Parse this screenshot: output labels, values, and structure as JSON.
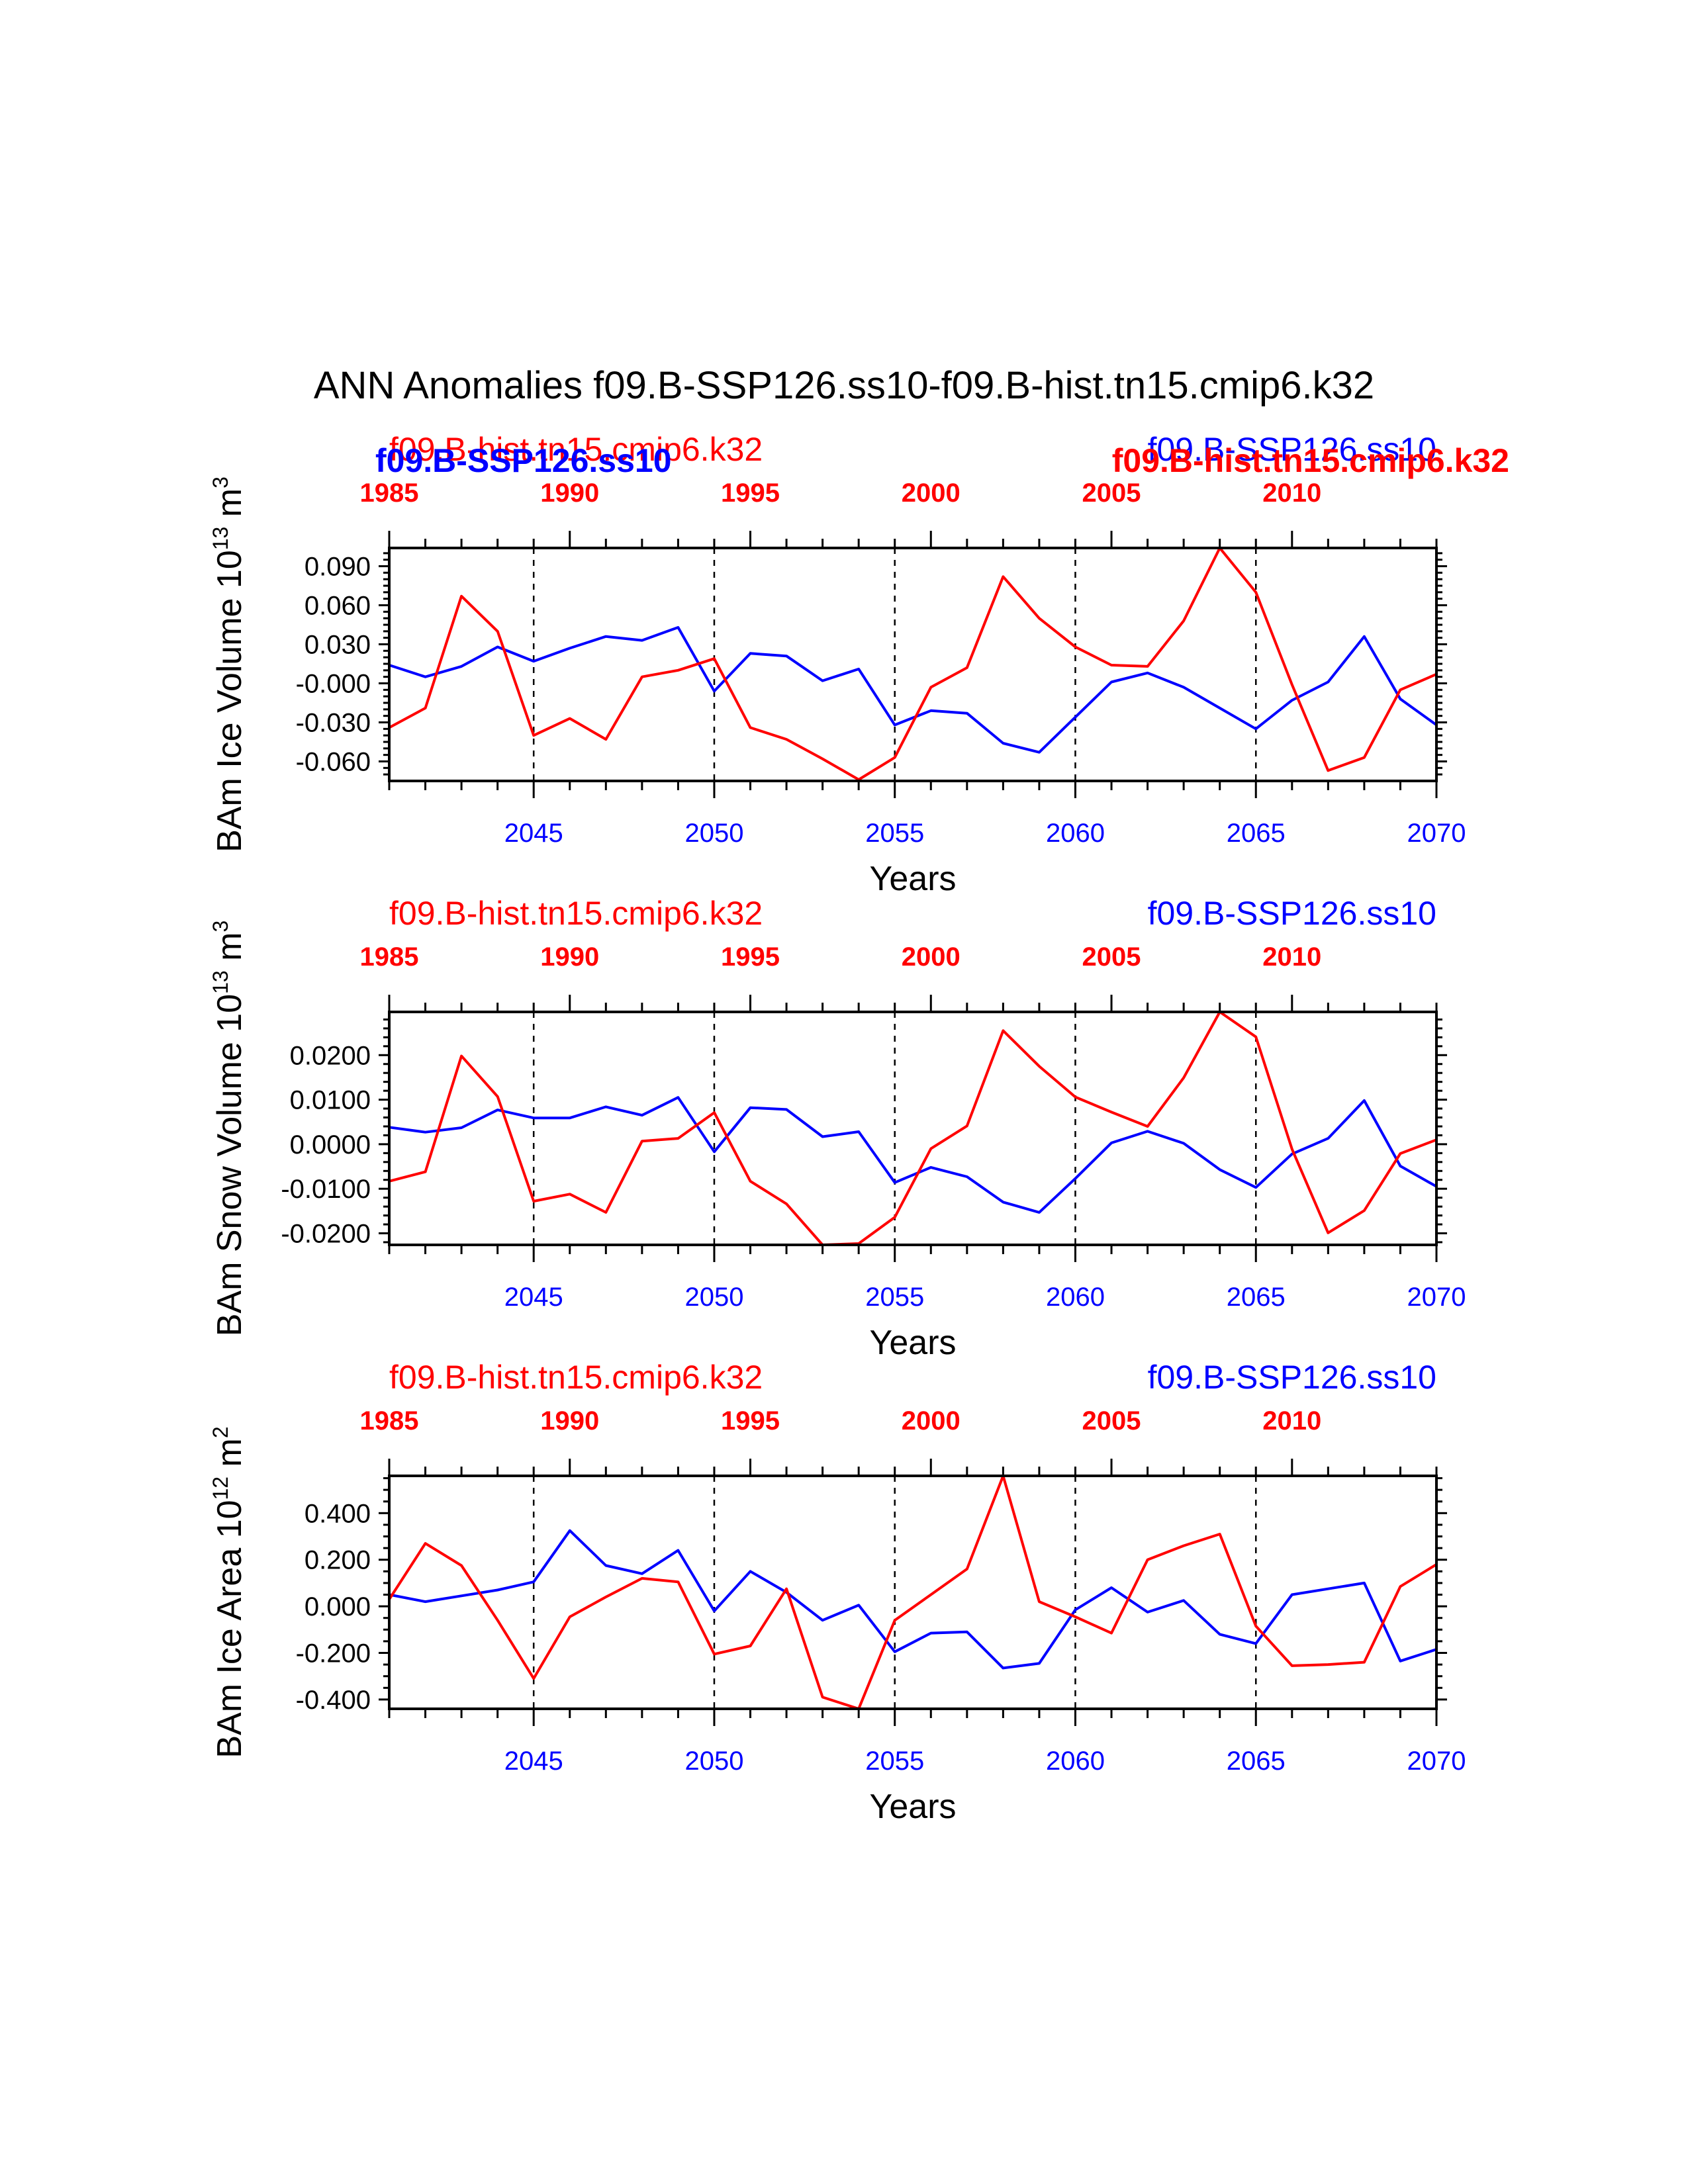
{
  "title": "ANN Anomalies f09.B-SSP126.ss10-f09.B-hist.tn15.cmip6.k32",
  "colors": {
    "ssp": "#0000ff",
    "hist": "#ff0000",
    "axis": "#000000"
  },
  "chart_data": [
    {
      "type": "line",
      "ylabel": "BAm Ice Volume 10",
      "unit_exp": "13",
      "unit_tail": " m",
      "unit_pow": "3",
      "xlabel": "Years",
      "ylim": [
        -0.075,
        0.104
      ],
      "yticks": [
        -0.06,
        -0.03,
        0.0,
        0.03,
        0.06,
        0.09
      ],
      "ytick_labels": [
        "-0.060",
        "-0.030",
        "-0.000",
        "0.030",
        "0.060",
        "0.090"
      ],
      "yminor": [
        -0.07,
        -0.065,
        -0.055,
        -0.05,
        -0.045,
        -0.04,
        -0.035,
        -0.025,
        -0.02,
        -0.015,
        -0.01,
        -0.005,
        0.005,
        0.01,
        0.015,
        0.02,
        0.025,
        0.035,
        0.04,
        0.045,
        0.05,
        0.055,
        0.065,
        0.07,
        0.075,
        0.08,
        0.085,
        0.095,
        0.1
      ],
      "bottom_axis": {
        "range": [
          2041,
          2070
        ],
        "ticks": [
          2045,
          2050,
          2055,
          2060,
          2065,
          2070
        ],
        "labels": [
          "2045",
          "2050",
          "2055",
          "2060",
          "2065",
          "2070"
        ]
      },
      "top_axis": {
        "range": [
          1985,
          2014
        ],
        "ticks": [
          1985,
          1990,
          1995,
          2000,
          2005,
          2010
        ],
        "labels": [
          "1985",
          "1990",
          "1995",
          "2000",
          "2005",
          "2010"
        ]
      },
      "top_labels": [
        {
          "text": "f09.B-hist.tn15.cmip6.k32",
          "color": "hist",
          "weight": "normal",
          "anchor": "start",
          "pos": "upper-left"
        },
        {
          "text": "f09.B-SSP126.ss10",
          "color": "ssp",
          "weight": "bold",
          "anchor": "start",
          "pos": "lower-left"
        },
        {
          "text": "f09.B-SSP126.ss10",
          "color": "ssp",
          "weight": "normal",
          "anchor": "end",
          "pos": "upper-right"
        },
        {
          "text": "f09.B-hist.tn15.cmip6.k32",
          "color": "hist",
          "weight": "bold",
          "anchor": "end",
          "pos": "lower-right"
        }
      ],
      "series": [
        {
          "name": "f09.B-SSP126.ss10",
          "color": "ssp",
          "axis": "bottom",
          "x": [
            2041,
            2042,
            2043,
            2044,
            2045,
            2046,
            2047,
            2048,
            2049,
            2050,
            2051,
            2052,
            2053,
            2054,
            2055,
            2056,
            2057,
            2058,
            2059,
            2060,
            2061,
            2062,
            2063,
            2064,
            2065,
            2066,
            2067,
            2068,
            2069,
            2070
          ],
          "values": [
            0.014,
            0.005,
            0.013,
            0.028,
            0.017,
            0.027,
            0.036,
            0.033,
            0.043,
            -0.006,
            0.023,
            0.021,
            0.002,
            0.011,
            -0.032,
            -0.021,
            -0.023,
            -0.046,
            -0.053,
            -0.026,
            0.001,
            0.008,
            -0.003,
            -0.019,
            -0.035,
            -0.013,
            0.001,
            0.036,
            -0.012,
            -0.032
          ]
        },
        {
          "name": "f09.B-hist.tn15.cmip6.k32",
          "color": "hist",
          "axis": "top",
          "x": [
            1985,
            1986,
            1987,
            1988,
            1989,
            1990,
            1991,
            1992,
            1993,
            1994,
            1995,
            1996,
            1997,
            1998,
            1999,
            2000,
            2001,
            2002,
            2003,
            2004,
            2005,
            2006,
            2007,
            2008,
            2009,
            2010,
            2011,
            2012,
            2013,
            2014
          ],
          "values": [
            -0.034,
            -0.019,
            0.067,
            0.04,
            -0.04,
            -0.027,
            -0.043,
            0.005,
            0.01,
            0.019,
            -0.034,
            -0.043,
            -0.058,
            -0.074,
            -0.057,
            -0.003,
            0.012,
            0.082,
            0.05,
            0.028,
            0.014,
            0.013,
            0.048,
            0.104,
            0.07,
            -0.001,
            -0.067,
            -0.057,
            -0.005,
            0.007
          ]
        }
      ]
    },
    {
      "type": "line",
      "ylabel": "BAm Snow Volume 10",
      "unit_exp": "13",
      "unit_tail": " m",
      "unit_pow": "3",
      "xlabel": "Years",
      "ylim": [
        -0.0226,
        0.0297
      ],
      "yticks": [
        -0.02,
        -0.01,
        0.0,
        0.01,
        0.02
      ],
      "ytick_labels": [
        "-0.0200",
        "-0.0100",
        "0.0000",
        "0.0100",
        "0.0200"
      ],
      "yminor": [
        -0.022,
        -0.018,
        -0.016,
        -0.014,
        -0.012,
        -0.008,
        -0.006,
        -0.004,
        -0.002,
        0.002,
        0.004,
        0.006,
        0.008,
        0.012,
        0.014,
        0.016,
        0.018,
        0.022,
        0.024,
        0.026,
        0.028
      ],
      "bottom_axis": {
        "range": [
          2041,
          2070
        ],
        "ticks": [
          2045,
          2050,
          2055,
          2060,
          2065,
          2070
        ],
        "labels": [
          "2045",
          "2050",
          "2055",
          "2060",
          "2065",
          "2070"
        ]
      },
      "top_axis": {
        "range": [
          1985,
          2014
        ],
        "ticks": [
          1985,
          1990,
          1995,
          2000,
          2005,
          2010
        ],
        "labels": [
          "1985",
          "1990",
          "1995",
          "2000",
          "2005",
          "2010"
        ]
      },
      "top_labels": [
        {
          "text": "f09.B-hist.tn15.cmip6.k32",
          "color": "hist",
          "weight": "normal",
          "anchor": "start",
          "pos": "upper-left"
        },
        {
          "text": "f09.B-SSP126.ss10",
          "color": "ssp",
          "weight": "normal",
          "anchor": "end",
          "pos": "upper-right"
        }
      ],
      "series": [
        {
          "name": "f09.B-SSP126.ss10",
          "color": "ssp",
          "axis": "bottom",
          "x": [
            2041,
            2042,
            2043,
            2044,
            2045,
            2046,
            2047,
            2048,
            2049,
            2050,
            2051,
            2052,
            2053,
            2054,
            2055,
            2056,
            2057,
            2058,
            2059,
            2060,
            2061,
            2062,
            2063,
            2064,
            2065,
            2066,
            2067,
            2068,
            2069,
            2070
          ],
          "values": [
            0.0038,
            0.0027,
            0.0037,
            0.0077,
            0.0059,
            0.0059,
            0.0084,
            0.0065,
            0.0105,
            -0.0017,
            0.0082,
            0.0078,
            0.0017,
            0.0028,
            -0.0086,
            -0.0052,
            -0.0073,
            -0.013,
            -0.0153,
            -0.0077,
            0.0003,
            0.0029,
            0.0002,
            -0.0057,
            -0.0097,
            -0.0022,
            0.0013,
            0.0098,
            -0.0049,
            -0.0095
          ]
        },
        {
          "name": "f09.B-hist.tn15.cmip6.k32",
          "color": "hist",
          "axis": "top",
          "x": [
            1985,
            1986,
            1987,
            1988,
            1989,
            1990,
            1991,
            1992,
            1993,
            1994,
            1995,
            1996,
            1997,
            1998,
            1999,
            2000,
            2001,
            2002,
            2003,
            2004,
            2005,
            2006,
            2007,
            2008,
            2009,
            2010,
            2011,
            2012,
            2013,
            2014
          ],
          "values": [
            -0.0083,
            -0.0062,
            0.0198,
            0.0107,
            -0.0128,
            -0.0112,
            -0.0153,
            0.0007,
            0.0013,
            0.0071,
            -0.0083,
            -0.0134,
            -0.0226,
            -0.0223,
            -0.0164,
            -0.001,
            0.0041,
            0.0255,
            0.0175,
            0.0106,
            0.0072,
            0.004,
            0.0149,
            0.0297,
            0.0241,
            -0.0011,
            -0.0199,
            -0.0149,
            -0.0021,
            0.001
          ]
        }
      ]
    },
    {
      "type": "line",
      "ylabel": "BAm Ice Area 10",
      "unit_exp": "12",
      "unit_tail": " m",
      "unit_pow": "2",
      "xlabel": "Years",
      "ylim": [
        -0.44,
        0.56
      ],
      "yticks": [
        -0.4,
        -0.2,
        0.0,
        0.2,
        0.4
      ],
      "ytick_labels": [
        "-0.400",
        "-0.200",
        "0.000",
        "0.200",
        "0.400"
      ],
      "yminor": [
        -0.35,
        -0.3,
        -0.25,
        -0.15,
        -0.1,
        -0.05,
        0.05,
        0.1,
        0.15,
        0.25,
        0.3,
        0.35,
        0.45,
        0.5,
        0.55
      ],
      "bottom_axis": {
        "range": [
          2041,
          2070
        ],
        "ticks": [
          2045,
          2050,
          2055,
          2060,
          2065,
          2070
        ],
        "labels": [
          "2045",
          "2050",
          "2055",
          "2060",
          "2065",
          "2070"
        ]
      },
      "top_axis": {
        "range": [
          1985,
          2014
        ],
        "ticks": [
          1985,
          1990,
          1995,
          2000,
          2005,
          2010
        ],
        "labels": [
          "1985",
          "1990",
          "1995",
          "2000",
          "2005",
          "2010"
        ]
      },
      "top_labels": [
        {
          "text": "f09.B-hist.tn15.cmip6.k32",
          "color": "hist",
          "weight": "normal",
          "anchor": "start",
          "pos": "upper-left"
        },
        {
          "text": "f09.B-SSP126.ss10",
          "color": "ssp",
          "weight": "normal",
          "anchor": "end",
          "pos": "upper-right"
        }
      ],
      "series": [
        {
          "name": "f09.B-SSP126.ss10",
          "color": "ssp",
          "axis": "bottom",
          "x": [
            2041,
            2042,
            2043,
            2044,
            2045,
            2046,
            2047,
            2048,
            2049,
            2050,
            2051,
            2052,
            2053,
            2054,
            2055,
            2056,
            2057,
            2058,
            2059,
            2060,
            2061,
            2062,
            2063,
            2064,
            2065,
            2066,
            2067,
            2068,
            2069,
            2070
          ],
          "values": [
            0.05,
            0.02,
            0.045,
            0.07,
            0.105,
            0.325,
            0.175,
            0.14,
            0.24,
            -0.02,
            0.15,
            0.06,
            -0.06,
            0.005,
            -0.195,
            -0.115,
            -0.11,
            -0.265,
            -0.245,
            -0.015,
            0.08,
            -0.025,
            0.025,
            -0.12,
            -0.16,
            0.05,
            0.075,
            0.1,
            -0.235,
            -0.185
          ]
        },
        {
          "name": "f09.B-hist.tn15.cmip6.k32",
          "color": "hist",
          "axis": "top",
          "x": [
            1985,
            1986,
            1987,
            1988,
            1989,
            1990,
            1991,
            1992,
            1993,
            1994,
            1995,
            1996,
            1997,
            1998,
            1999,
            2000,
            2001,
            2002,
            2003,
            2004,
            2005,
            2006,
            2007,
            2008,
            2009,
            2010,
            2011,
            2012,
            2013,
            2014
          ],
          "values": [
            0.03,
            0.27,
            0.175,
            -0.06,
            -0.31,
            -0.045,
            0.04,
            0.12,
            0.105,
            -0.205,
            -0.17,
            0.075,
            -0.39,
            -0.44,
            -0.06,
            0.05,
            0.16,
            0.56,
            0.02,
            -0.045,
            -0.115,
            0.2,
            0.26,
            0.31,
            -0.085,
            -0.255,
            -0.25,
            -0.24,
            0.085,
            0.18
          ]
        }
      ]
    }
  ]
}
